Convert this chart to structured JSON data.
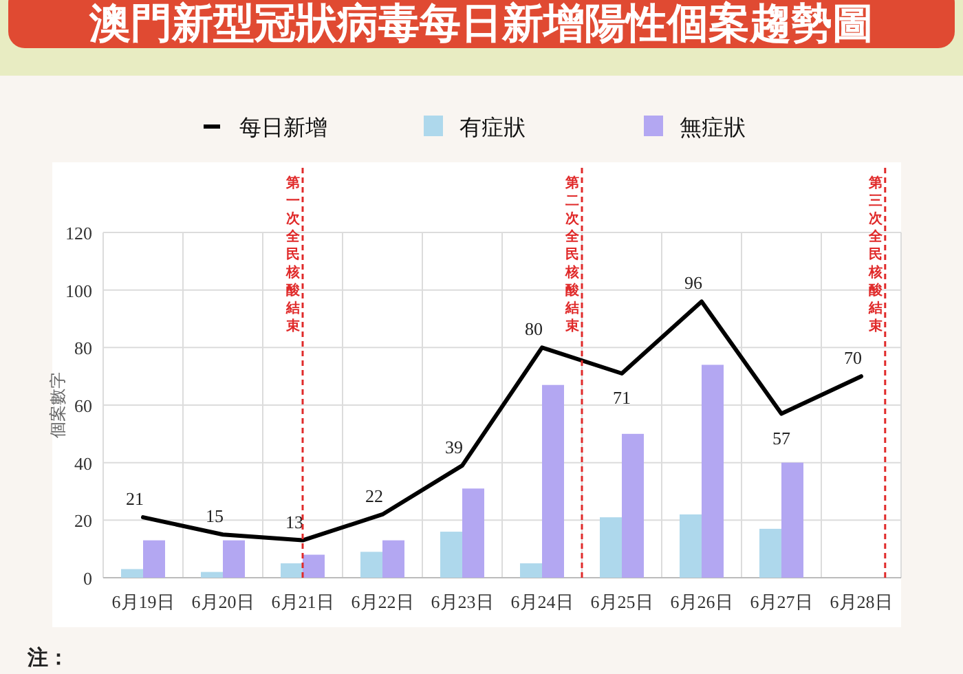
{
  "chart_data": {
    "type": "bar",
    "title": "澳門新型冠狀病毒每日新增陽性個案趨勢圖",
    "ylabel": "個案數字",
    "categories": [
      "6月19日",
      "6月20日",
      "6月21日",
      "6月22日",
      "6月23日",
      "6月24日",
      "6月25日",
      "6月26日",
      "6月27日",
      "6月28日"
    ],
    "series": [
      {
        "name": "每日新增",
        "type": "line",
        "color": "#000000",
        "values": [
          21,
          15,
          13,
          22,
          39,
          80,
          71,
          96,
          57,
          70
        ],
        "value_labels": [
          "21",
          "15",
          "13",
          "22",
          "39",
          "80",
          "71",
          "96",
          "57",
          "70"
        ]
      },
      {
        "name": "有症狀",
        "color": "#aed8ec",
        "values": [
          3,
          2,
          5,
          9,
          16,
          5,
          21,
          22,
          17,
          null
        ]
      },
      {
        "name": "無症狀",
        "color": "#b3a7f2",
        "values": [
          13,
          13,
          8,
          13,
          31,
          67,
          50,
          74,
          40,
          null
        ]
      }
    ],
    "ylim": [
      0,
      120
    ],
    "yticks": [
      0,
      20,
      40,
      60,
      80,
      100,
      120
    ],
    "grid": true,
    "legend": "top",
    "ref_lines": [
      {
        "axis": "x",
        "value": "6月21日",
        "label": "第一次全民核酸結束",
        "color": "#e02a2a",
        "line_style": "dashed"
      }
    ],
    "annotations": [
      "第二次全民核酸結束",
      "第三次全民核酸結束",
      "注："
    ]
  }
}
